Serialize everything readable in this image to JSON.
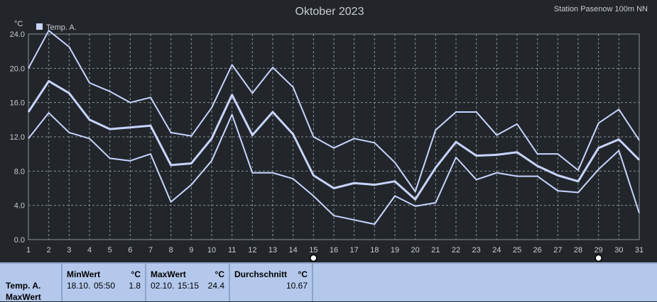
{
  "header": {
    "title": "Oktober 2023",
    "station": "Station Pasenow 100m NN"
  },
  "legend": {
    "label": "Temp. A.",
    "color": "#c8d4ff"
  },
  "colors": {
    "background": "#22262b",
    "grid": "#8a9098",
    "line": "#c8d4ff",
    "panel": "#b4c8ec"
  },
  "chart_data": {
    "type": "line",
    "title": "Oktober 2023",
    "ylabel": "°C",
    "ylim": [
      0,
      24
    ],
    "yticks": [
      "0.0",
      "4.0",
      "8.0",
      "12.0",
      "16.0",
      "20.0",
      "24.0"
    ],
    "x": [
      1,
      2,
      3,
      4,
      5,
      6,
      7,
      8,
      9,
      10,
      11,
      12,
      13,
      14,
      15,
      16,
      17,
      18,
      19,
      20,
      21,
      22,
      23,
      24,
      25,
      26,
      27,
      28,
      29,
      30,
      31
    ],
    "series": [
      {
        "role": "max",
        "values": [
          20.0,
          24.4,
          22.5,
          18.3,
          17.3,
          16.0,
          16.6,
          12.5,
          12.1,
          15.4,
          20.4,
          17.1,
          20.1,
          17.8,
          12.0,
          10.7,
          11.8,
          11.3,
          9.0,
          5.6,
          12.8,
          14.9,
          14.9,
          12.2,
          13.5,
          10.0,
          10.0,
          8.1,
          13.6,
          15.2,
          11.6
        ]
      },
      {
        "role": "mean",
        "values": [
          14.9,
          18.5,
          17.1,
          14.0,
          12.9,
          13.1,
          13.3,
          8.7,
          8.9,
          11.8,
          16.9,
          12.2,
          14.9,
          12.3,
          7.5,
          6.0,
          6.6,
          6.4,
          6.8,
          4.7,
          8.4,
          11.4,
          9.8,
          9.9,
          10.2,
          8.6,
          7.5,
          6.8,
          10.7,
          11.7,
          9.3
        ]
      },
      {
        "role": "min",
        "values": [
          11.8,
          14.8,
          12.5,
          11.8,
          9.5,
          9.2,
          10.0,
          4.4,
          6.4,
          9.2,
          14.6,
          7.8,
          7.8,
          7.1,
          5.1,
          2.8,
          2.3,
          1.8,
          5.1,
          3.9,
          4.3,
          9.6,
          7.0,
          7.8,
          7.4,
          7.4,
          5.7,
          5.5,
          8.2,
          10.4,
          3.1
        ]
      }
    ],
    "markers": [
      15,
      29
    ],
    "grid": true,
    "legend_position": "top-left"
  },
  "stats": {
    "series_name": "Temp. A.",
    "row_label": "MaxWert",
    "min": {
      "header": "MinWert",
      "unit": "°C",
      "date": "18.10.",
      "time": "05:50",
      "value": "1.8"
    },
    "max": {
      "header": "MaxWert",
      "unit": "°C",
      "date": "02.10.",
      "time": "15:15",
      "value": "24.4"
    },
    "avg": {
      "header": "Durchschnitt",
      "unit": "°C",
      "value": "10.67"
    }
  }
}
